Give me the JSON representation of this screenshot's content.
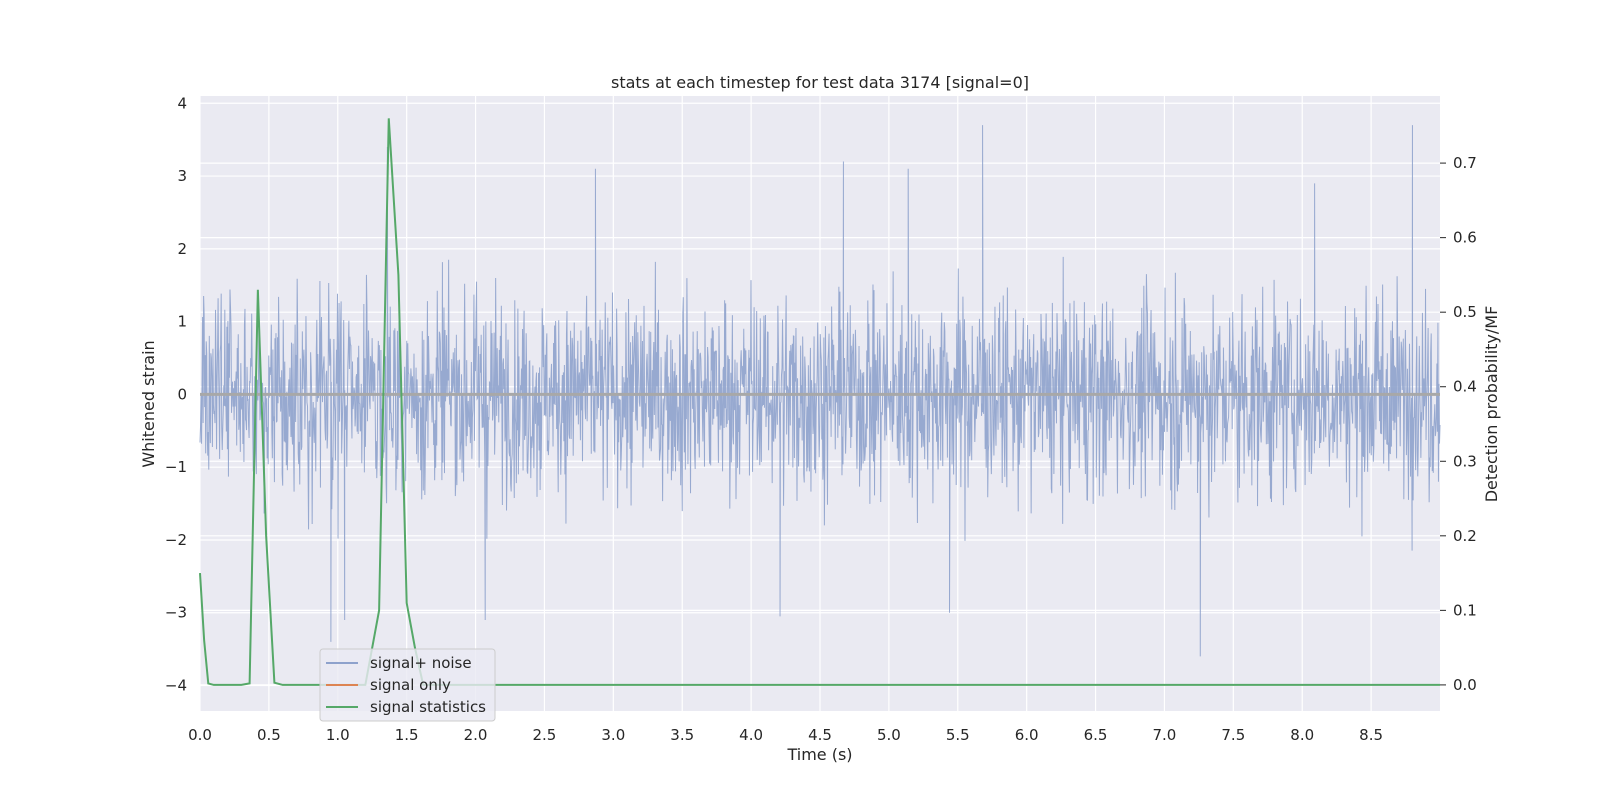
{
  "chart_data": {
    "type": "line",
    "title": "stats at each timestep for test data 3174 [signal=0]",
    "xlabel": "Time (s)",
    "ylabel": "Whitened strain",
    "y2label": "Detection probability/MF",
    "xlim": [
      0.0,
      9.0
    ],
    "ylim": [
      -4.35,
      4.1
    ],
    "y2lim": [
      -0.035,
      0.79
    ],
    "x_ticks": [
      0.0,
      0.5,
      1.0,
      1.5,
      2.0,
      2.5,
      3.0,
      3.5,
      4.0,
      4.5,
      5.0,
      5.5,
      6.0,
      6.5,
      7.0,
      7.5,
      8.0,
      8.5
    ],
    "x_tick_labels": [
      "0.0",
      "0.5",
      "1.0",
      "1.5",
      "2.0",
      "2.5",
      "3.0",
      "3.5",
      "4.0",
      "4.5",
      "5.0",
      "5.5",
      "6.0",
      "6.5",
      "7.0",
      "7.5",
      "8.0",
      "8.5"
    ],
    "y_ticks": [
      -4,
      -3,
      -2,
      -1,
      0,
      1,
      2,
      3,
      4
    ],
    "y_tick_labels": [
      "−4",
      "−3",
      "−2",
      "−1",
      "0",
      "1",
      "2",
      "3",
      "4"
    ],
    "y2_ticks": [
      0.0,
      0.1,
      0.2,
      0.3,
      0.4,
      0.5,
      0.6,
      0.7
    ],
    "y2_tick_labels": [
      "0.0",
      "0.1",
      "0.2",
      "0.3",
      "0.4",
      "0.5",
      "0.6",
      "0.7"
    ],
    "grid": true,
    "legend_position": "lower-left",
    "series": [
      {
        "name": "signal+ noise",
        "axis": "left",
        "color": "#8ea2cc",
        "kind": "dense-noise",
        "x_range": [
          0.0,
          9.0
        ],
        "approx_range": [
          -3.6,
          3.7
        ],
        "notable_peaks": [
          [
            1.36,
            3.4
          ],
          [
            5.68,
            3.7
          ],
          [
            8.8,
            3.7
          ],
          [
            2.87,
            3.1
          ],
          [
            4.67,
            3.2
          ],
          [
            5.14,
            3.1
          ],
          [
            8.09,
            2.9
          ]
        ],
        "notable_troughs": [
          [
            7.26,
            -3.6
          ],
          [
            2.07,
            -3.1
          ],
          [
            4.21,
            -3.05
          ],
          [
            5.44,
            -3.0
          ],
          [
            0.95,
            -3.4
          ],
          [
            1.05,
            -3.1
          ]
        ]
      },
      {
        "name": "signal only",
        "axis": "left",
        "color": "#dd8452",
        "x": [
          0.0,
          9.0
        ],
        "y": [
          0.0,
          0.0
        ]
      },
      {
        "name": "signal statistics",
        "axis": "right",
        "color": "#55a868",
        "x": [
          0.0,
          0.03,
          0.06,
          0.1,
          0.2,
          0.3,
          0.36,
          0.42,
          0.48,
          0.54,
          0.6,
          0.9,
          1.2,
          1.3,
          1.37,
          1.44,
          1.5,
          1.56,
          1.62,
          1.8,
          9.0
        ],
        "y": [
          0.15,
          0.06,
          0.002,
          0.0,
          0.0,
          0.0,
          0.002,
          0.53,
          0.2,
          0.003,
          0.0,
          0.0,
          0.0,
          0.1,
          0.76,
          0.55,
          0.11,
          0.05,
          0.0,
          0.0,
          0.0
        ]
      }
    ]
  }
}
